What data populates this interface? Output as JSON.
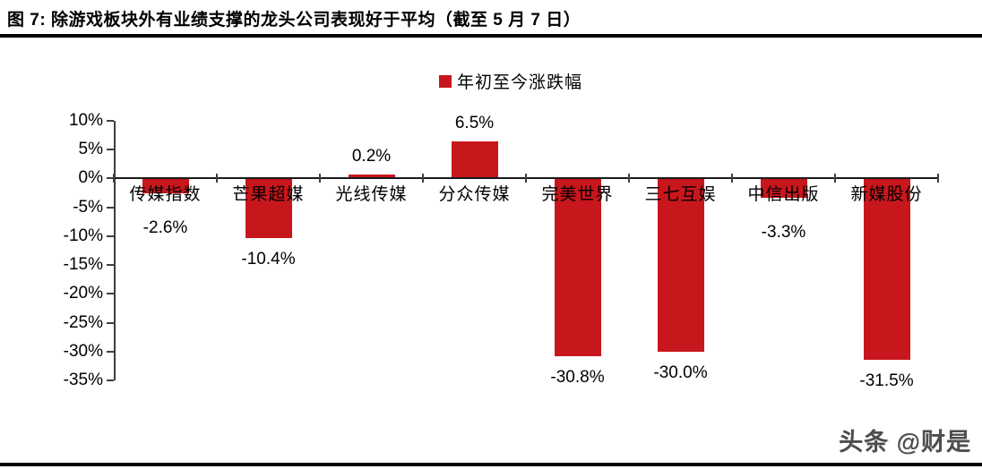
{
  "figure": {
    "title": "图 7: 除游戏板块外有业绩支撑的龙头公司表现好于平均（截至 5 月 7 日）"
  },
  "legend": {
    "label": "年初至今涨跌幅",
    "marker_color": "#C8161D"
  },
  "chart_data": {
    "type": "bar",
    "title": "",
    "legend_entries": [
      "年初至今涨跌幅"
    ],
    "legend_position": "top",
    "categories": [
      "传媒指数",
      "芒果超媒",
      "光线传媒",
      "分众传媒",
      "完美世界",
      "三七互娱",
      "中信出版",
      "新媒股份"
    ],
    "values": [
      -2.6,
      -10.4,
      0.2,
      6.5,
      -30.8,
      -30.0,
      -3.3,
      -31.5
    ],
    "value_labels": [
      "-2.6%",
      "-10.4%",
      "0.2%",
      "6.5%",
      "-30.8%",
      "-30.0%",
      "-3.3%",
      "-31.5%"
    ],
    "unit": "%",
    "ylim": [
      -35,
      10
    ],
    "ytick_labels": [
      "10%",
      "5%",
      "0%",
      "-5%",
      "-10%",
      "-15%",
      "-20%",
      "-25%",
      "-30%",
      "-35%"
    ],
    "ytick_values": [
      10,
      5,
      0,
      -5,
      -10,
      -15,
      -20,
      -25,
      -30,
      -35
    ],
    "bar_color": "#C8161D",
    "grid": false
  },
  "watermark": "头条 @财是"
}
